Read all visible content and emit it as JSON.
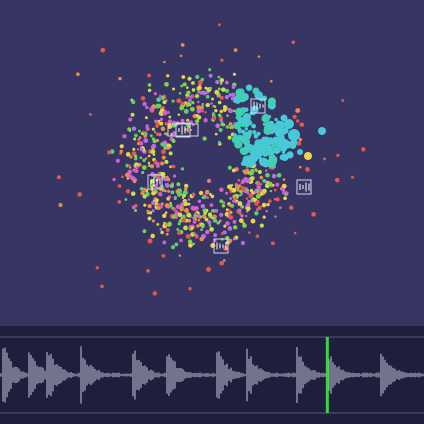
{
  "app": {
    "background_color": "#363563",
    "timeline_background_color": "#1f1e3c",
    "waveform_color": "#c8c8dc",
    "playhead_color": "#3fcf4a",
    "point_palette": [
      "#7fd44f",
      "#5bd16d",
      "#c6e04a",
      "#e25a4e",
      "#ef8a4a",
      "#d65fc9",
      "#b96de0",
      "#f0d24a",
      "#48c8d8",
      "#3fd0b0"
    ]
  },
  "visualization": {
    "description_icons": [
      "cluster-marker-icon",
      "cluster-marker-icon",
      "cluster-marker-icon",
      "cluster-marker-icon",
      "cluster-marker-icon"
    ]
  },
  "timeline": {
    "playhead_position": 0.772
  }
}
